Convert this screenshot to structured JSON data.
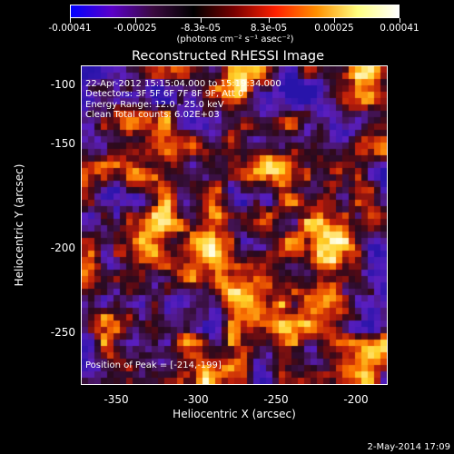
{
  "colorbar": {
    "tick_labels": [
      "-0.00041",
      "-0.00025",
      "-8.3e-05",
      "8.3e-05",
      "0.00025",
      "0.00041"
    ],
    "units": "(photons cm⁻² s⁻¹ asec⁻²)",
    "colors": [
      "#0000ff",
      "#5a00c8",
      "#3a0a40",
      "#000000",
      "#7a0000",
      "#ff2000",
      "#ff9000",
      "#ffff80",
      "#ffffff"
    ]
  },
  "title": "Reconstructed RHESSI Image",
  "annotations": {
    "time": "22-Apr-2012 15:15:04.000 to 15:19:34.000",
    "detectors": "Detectors: 3F 5F 6F 7F 8F 9F, Att 0",
    "energy": "Energy Range: 12.0 - 25.0 keV",
    "method": "Clean     Total counts: 6.02E+03",
    "peak": "Position of Peak = [-214,-199]"
  },
  "axes": {
    "xlabel": "Heliocentric X (arcsec)",
    "ylabel": "Heliocentric Y (arcsec)",
    "xticks": [
      "-350",
      "-300",
      "-250",
      "-200"
    ],
    "yticks": [
      "-100",
      "-150",
      "-200",
      "-250"
    ],
    "xrange": [
      -378,
      -188
    ],
    "yrange": [
      -282,
      -90
    ]
  },
  "timestamp": "2-May-2014 17:09"
}
